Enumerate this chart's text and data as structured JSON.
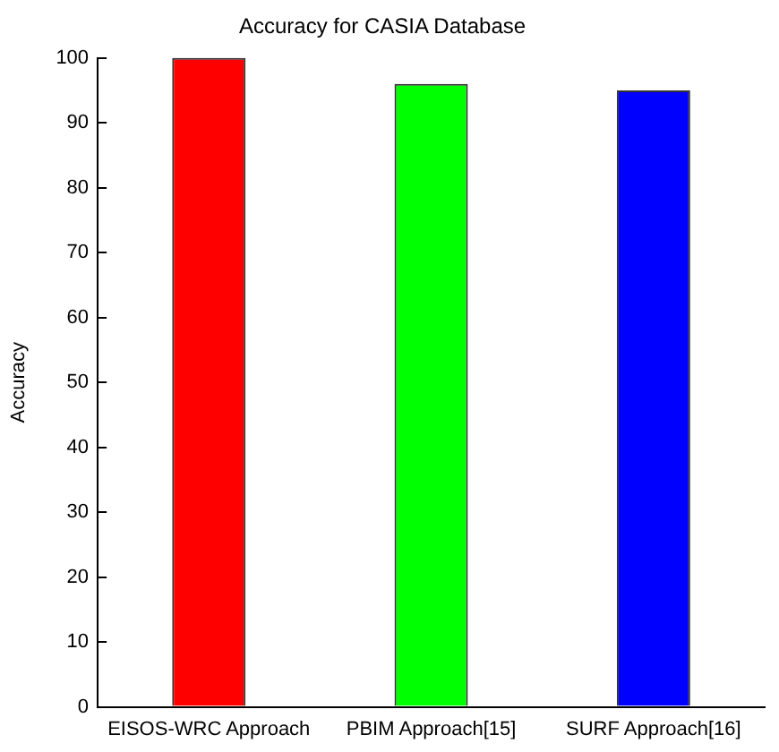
{
  "chart_data": {
    "type": "bar",
    "title": "Accuracy for CASIA Database",
    "ylabel": "Accuracy",
    "categories": [
      "EISOS-WRC Approach",
      "PBIM Approach[15]",
      "SURF Approach[16]"
    ],
    "values": [
      100,
      96,
      95
    ],
    "colors": [
      "#ff0000",
      "#00ff00",
      "#0000ff"
    ],
    "ylim": [
      0,
      100
    ],
    "yticks": [
      0,
      10,
      20,
      30,
      40,
      50,
      60,
      70,
      80,
      90,
      100
    ],
    "grid": false,
    "legend": false
  }
}
